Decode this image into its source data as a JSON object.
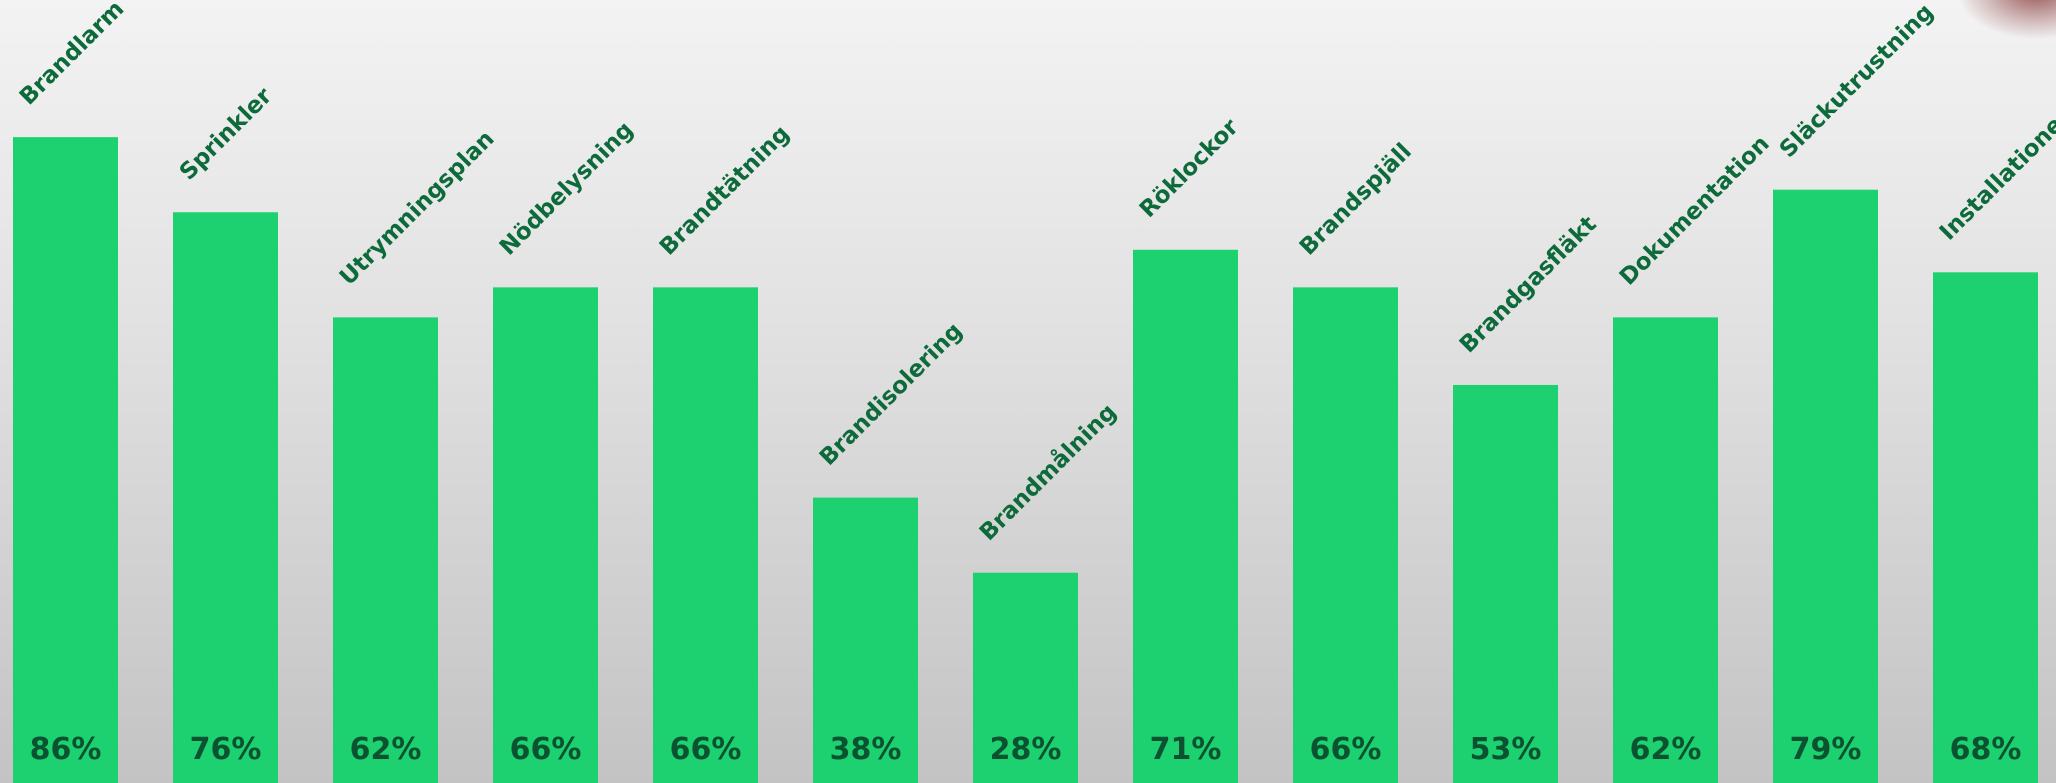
{
  "chart_data": {
    "type": "bar",
    "categories": [
      "Brandlarm",
      "Sprinkler",
      "Utrymningsplan",
      "Nödbelysning",
      "Brandtätning",
      "Brandisolering",
      "Brandmålning",
      "Röklockor",
      "Brandspjäll",
      "Brandgasfläkt",
      "Dokumentation",
      "Släckutrustning",
      "Installationer"
    ],
    "values": [
      86,
      76,
      62,
      66,
      66,
      38,
      28,
      71,
      66,
      53,
      62,
      79,
      68
    ],
    "value_labels": [
      "86%",
      "76%",
      "62%",
      "66%",
      "66%",
      "38%",
      "28%",
      "71%",
      "66%",
      "53%",
      "62%",
      "79%",
      "68%"
    ],
    "color": "#1dd070"
  }
}
